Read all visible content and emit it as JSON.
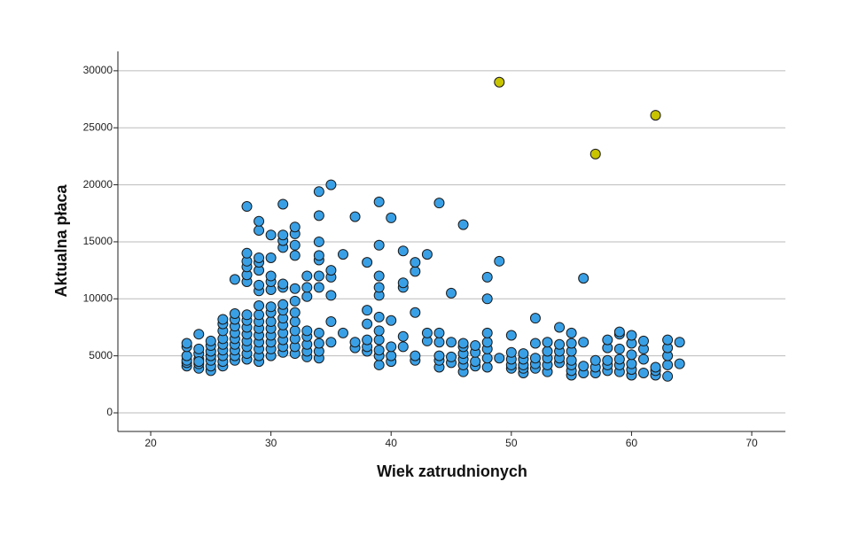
{
  "chart_data": {
    "type": "scatter",
    "x_label": "Wiek zatrudnionych",
    "y_label": "Aktualna płaca",
    "xlim": [
      17.27,
      72.8
    ],
    "xticks": [
      20,
      30,
      40,
      50,
      60,
      70
    ],
    "ylim": [
      -1632,
      31700
    ],
    "yticks": [
      0,
      5000,
      10000,
      15000,
      20000,
      25000,
      30000
    ],
    "grid": true,
    "series": [
      {
        "color": "#3aa0e6",
        "x": [
          23,
          23,
          23,
          23,
          23,
          23,
          24,
          24,
          24,
          24,
          24,
          24,
          24,
          25,
          25,
          25,
          25,
          25,
          25,
          25,
          26,
          26,
          26,
          26,
          26,
          26,
          26,
          26,
          26,
          27,
          27,
          27,
          27,
          27,
          27,
          27,
          27,
          27,
          27,
          28,
          28,
          28,
          28,
          28,
          28,
          28,
          28,
          28,
          28,
          28,
          28,
          28,
          28,
          29,
          29,
          29,
          29,
          29,
          29,
          29,
          29,
          29,
          29,
          29,
          29,
          29,
          29,
          29,
          29,
          30,
          30,
          30,
          30,
          30,
          30,
          30,
          30,
          30,
          30,
          30,
          30,
          30,
          31,
          31,
          31,
          31,
          31,
          31,
          31,
          31,
          31,
          31,
          31,
          31,
          31,
          31,
          32,
          32,
          32,
          32,
          32,
          32,
          32,
          32,
          32,
          32,
          32,
          32,
          33,
          33,
          33,
          33,
          33,
          33,
          33,
          33,
          34,
          34,
          34,
          34,
          34,
          34,
          34,
          34,
          34,
          34,
          34,
          35,
          35,
          35,
          35,
          35,
          35,
          36,
          36,
          37,
          37,
          37,
          38,
          38,
          38,
          38,
          38,
          38,
          39,
          39,
          39,
          39,
          39,
          39,
          39,
          39,
          39,
          39,
          39,
          40,
          40,
          40,
          40,
          40,
          41,
          41,
          41,
          41,
          41,
          42,
          42,
          42,
          42,
          42,
          43,
          43,
          43,
          44,
          44,
          44,
          44,
          44,
          44,
          45,
          45,
          45,
          45,
          46,
          46,
          46,
          46,
          46,
          46,
          46,
          47,
          47,
          47,
          47,
          48,
          48,
          48,
          48,
          48,
          48,
          48,
          49,
          49,
          50,
          50,
          50,
          50,
          50,
          51,
          51,
          51,
          51,
          51,
          52,
          52,
          52,
          52,
          52,
          53,
          53,
          53,
          53,
          53,
          54,
          54,
          54,
          54,
          54,
          55,
          55,
          55,
          55,
          55,
          55,
          55,
          56,
          56,
          56,
          56,
          57,
          57,
          57,
          58,
          58,
          58,
          58,
          58,
          59,
          59,
          59,
          59,
          59,
          59,
          60,
          60,
          60,
          60,
          60,
          60,
          61,
          61,
          61,
          61,
          62,
          62,
          62,
          63,
          63,
          63,
          63,
          63,
          64,
          64
        ],
        "values": [
          4100,
          4400,
          4600,
          5000,
          5800,
          6100,
          3900,
          4300,
          4700,
          5200,
          5600,
          6900,
          4500,
          3700,
          4100,
          4600,
          5000,
          5400,
          5900,
          6300,
          4100,
          4500,
          5000,
          5500,
          6000,
          6500,
          7200,
          7800,
          8200,
          4600,
          5000,
          5500,
          6000,
          6500,
          7000,
          7600,
          8200,
          8700,
          11700,
          4700,
          5200,
          5800,
          6300,
          6900,
          7500,
          8100,
          8600,
          11500,
          12100,
          12800,
          13300,
          14000,
          18100,
          4500,
          5000,
          5600,
          6200,
          6800,
          7400,
          8000,
          8600,
          9400,
          10700,
          11200,
          12500,
          13200,
          13600,
          16000,
          16800,
          5000,
          5600,
          6200,
          6800,
          7400,
          8000,
          8800,
          9300,
          10800,
          11500,
          12000,
          13600,
          15600,
          5300,
          5800,
          6400,
          7000,
          7700,
          8300,
          9000,
          9500,
          11000,
          11300,
          14500,
          15100,
          15600,
          18300,
          5200,
          5800,
          6500,
          7200,
          8000,
          8800,
          9800,
          10900,
          13800,
          14700,
          15700,
          16300,
          4900,
          5400,
          6000,
          6700,
          7200,
          10200,
          11000,
          12000,
          4800,
          5400,
          6100,
          7000,
          11000,
          12000,
          13400,
          13800,
          15000,
          17300,
          19400,
          6200,
          8000,
          10300,
          11900,
          12500,
          20000,
          7000,
          13900,
          5700,
          6200,
          17200,
          5400,
          5800,
          6400,
          7800,
          9000,
          13200,
          4200,
          5000,
          5500,
          6400,
          7200,
          8400,
          10300,
          11000,
          12000,
          14700,
          18500,
          4500,
          5000,
          5800,
          8100,
          17100,
          5800,
          6700,
          11000,
          11400,
          14200,
          4600,
          5000,
          8800,
          12400,
          13200,
          6300,
          7000,
          13900,
          4000,
          4600,
          5000,
          6200,
          7000,
          18400,
          4400,
          4900,
          6200,
          10500,
          3600,
          4200,
          4700,
          5200,
          5800,
          6100,
          16500,
          4100,
          4500,
          5300,
          5900,
          4000,
          4800,
          5600,
          6200,
          7000,
          10000,
          11900,
          4800,
          13300,
          3900,
          4200,
          4700,
          5300,
          6800,
          3500,
          3900,
          4200,
          4700,
          5200,
          3900,
          4300,
          4800,
          6100,
          8300,
          3600,
          4200,
          4800,
          5400,
          6200,
          4400,
          4800,
          5400,
          6000,
          7500,
          3300,
          3700,
          4200,
          4600,
          5400,
          6100,
          7000,
          3500,
          4100,
          6200,
          11800,
          3500,
          4000,
          4600,
          3700,
          4200,
          4600,
          5700,
          6400,
          3600,
          4200,
          4700,
          5600,
          6900,
          7100,
          3300,
          3800,
          4300,
          5100,
          6100,
          6800,
          3500,
          4700,
          5600,
          6300,
          3300,
          3700,
          4000,
          3200,
          4200,
          5000,
          5700,
          6400,
          4300,
          6200
        ]
      },
      {
        "color": "#c8c400",
        "x": [
          49,
          57,
          62
        ],
        "values": [
          29000,
          22700,
          26100
        ]
      }
    ]
  }
}
